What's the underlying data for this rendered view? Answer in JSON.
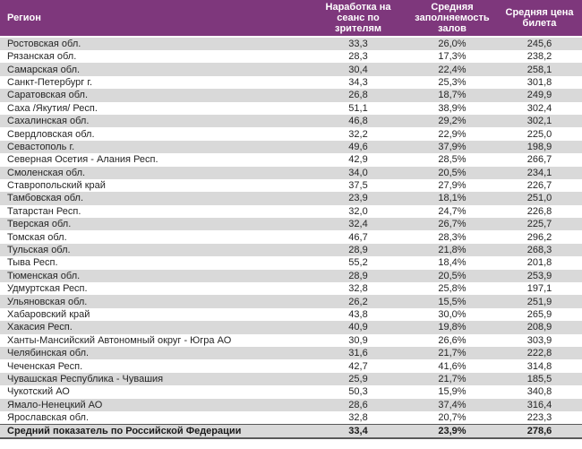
{
  "colors": {
    "header_bg": "#7E377C",
    "stripe_bg": "#D9D9D9",
    "row_text": "#262626",
    "total_border": "#595959"
  },
  "chart_data": {
    "type": "table",
    "title": "",
    "columns": [
      "Регион",
      "Наработка на сеанс по зрителям",
      "Средняя заполняемость залов",
      "Средняя цена билета"
    ],
    "rows": [
      {
        "region": "Ростовская обл.",
        "viewers_per_session": "33,3",
        "occupancy": "26,0%",
        "avg_ticket_price": "245,6"
      },
      {
        "region": "Рязанская обл.",
        "viewers_per_session": "28,3",
        "occupancy": "17,3%",
        "avg_ticket_price": "238,2"
      },
      {
        "region": "Самарская обл.",
        "viewers_per_session": "30,4",
        "occupancy": "22,4%",
        "avg_ticket_price": "258,1"
      },
      {
        "region": "Санкт-Петербург г.",
        "viewers_per_session": "34,3",
        "occupancy": "25,3%",
        "avg_ticket_price": "301,8"
      },
      {
        "region": "Саратовская обл.",
        "viewers_per_session": "26,8",
        "occupancy": "18,7%",
        "avg_ticket_price": "249,9"
      },
      {
        "region": "Саха /Якутия/ Респ.",
        "viewers_per_session": "51,1",
        "occupancy": "38,9%",
        "avg_ticket_price": "302,4"
      },
      {
        "region": "Сахалинская обл.",
        "viewers_per_session": "46,8",
        "occupancy": "29,2%",
        "avg_ticket_price": "302,1"
      },
      {
        "region": "Свердловская обл.",
        "viewers_per_session": "32,2",
        "occupancy": "22,9%",
        "avg_ticket_price": "225,0"
      },
      {
        "region": "Севастополь г.",
        "viewers_per_session": "49,6",
        "occupancy": "37,9%",
        "avg_ticket_price": "198,9"
      },
      {
        "region": "Северная Осетия - Алания Респ.",
        "viewers_per_session": "42,9",
        "occupancy": "28,5%",
        "avg_ticket_price": "266,7"
      },
      {
        "region": "Смоленская обл.",
        "viewers_per_session": "34,0",
        "occupancy": "20,5%",
        "avg_ticket_price": "234,1"
      },
      {
        "region": "Ставропольский край",
        "viewers_per_session": "37,5",
        "occupancy": "27,9%",
        "avg_ticket_price": "226,7"
      },
      {
        "region": "Тамбовская обл.",
        "viewers_per_session": "23,9",
        "occupancy": "18,1%",
        "avg_ticket_price": "251,0"
      },
      {
        "region": "Татарстан Респ.",
        "viewers_per_session": "32,0",
        "occupancy": "24,7%",
        "avg_ticket_price": "226,8"
      },
      {
        "region": "Тверская обл.",
        "viewers_per_session": "32,4",
        "occupancy": "26,7%",
        "avg_ticket_price": "225,7"
      },
      {
        "region": "Томская обл.",
        "viewers_per_session": "46,7",
        "occupancy": "28,3%",
        "avg_ticket_price": "296,2"
      },
      {
        "region": "Тульская обл.",
        "viewers_per_session": "28,9",
        "occupancy": "21,8%",
        "avg_ticket_price": "268,3"
      },
      {
        "region": "Тыва Респ.",
        "viewers_per_session": "55,2",
        "occupancy": "18,4%",
        "avg_ticket_price": "201,8"
      },
      {
        "region": "Тюменская обл.",
        "viewers_per_session": "28,9",
        "occupancy": "20,5%",
        "avg_ticket_price": "253,9"
      },
      {
        "region": "Удмуртская Респ.",
        "viewers_per_session": "32,8",
        "occupancy": "25,8%",
        "avg_ticket_price": "197,1"
      },
      {
        "region": "Ульяновская обл.",
        "viewers_per_session": "26,2",
        "occupancy": "15,5%",
        "avg_ticket_price": "251,9"
      },
      {
        "region": "Хабаровский край",
        "viewers_per_session": "43,8",
        "occupancy": "30,0%",
        "avg_ticket_price": "265,9"
      },
      {
        "region": "Хакасия Респ.",
        "viewers_per_session": "40,9",
        "occupancy": "19,8%",
        "avg_ticket_price": "208,9"
      },
      {
        "region": "Ханты-Мансийский Автономный округ - Югра АО",
        "viewers_per_session": "30,9",
        "occupancy": "26,6%",
        "avg_ticket_price": "303,9"
      },
      {
        "region": "Челябинская обл.",
        "viewers_per_session": "31,6",
        "occupancy": "21,7%",
        "avg_ticket_price": "222,8"
      },
      {
        "region": "Чеченская Респ.",
        "viewers_per_session": "42,7",
        "occupancy": "41,6%",
        "avg_ticket_price": "314,8"
      },
      {
        "region": "Чувашская Республика - Чувашия",
        "viewers_per_session": "25,9",
        "occupancy": "21,7%",
        "avg_ticket_price": "185,5"
      },
      {
        "region": "Чукотский АО",
        "viewers_per_session": "50,3",
        "occupancy": "15,9%",
        "avg_ticket_price": "340,8"
      },
      {
        "region": "Ямало-Ненецкий АО",
        "viewers_per_session": "28,6",
        "occupancy": "37,4%",
        "avg_ticket_price": "316,4"
      },
      {
        "region": "Ярославская обл.",
        "viewers_per_session": "32,8",
        "occupancy": "20,7%",
        "avg_ticket_price": "223,3"
      }
    ],
    "total_row": {
      "region": "Средний показатель по Российской Федерации",
      "viewers_per_session": "33,4",
      "occupancy": "23,9%",
      "avg_ticket_price": "278,6"
    },
    "layout_hints": {
      "header_alignment": "region left, numeric columns centered",
      "striping": "odd rows gray, even rows white, total row gray bold with dark top and bottom borders"
    }
  }
}
